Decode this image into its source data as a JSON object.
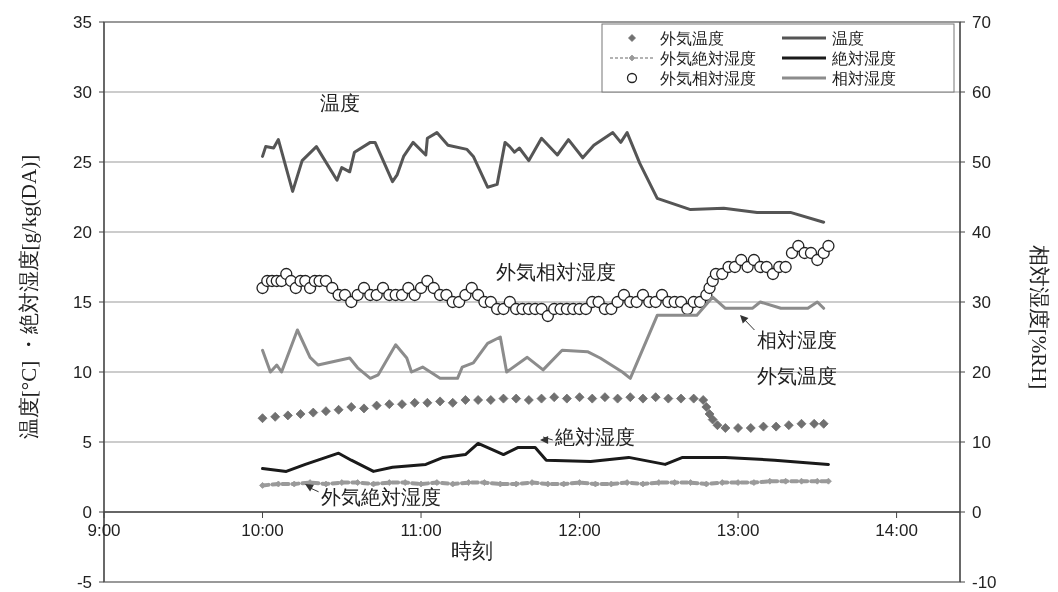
{
  "chart_data": {
    "type": "line",
    "xlabel": "時刻",
    "ylabel": "温度[°C] ・絶対湿度[g/kg(DA)]",
    "y2label": "相対湿度[%RH]",
    "xlim": [
      9,
      14.4
    ],
    "xticks": [
      {
        "value": 9,
        "label": "9:00"
      },
      {
        "value": 10,
        "label": "10:00"
      },
      {
        "value": 11,
        "label": "11:00"
      },
      {
        "value": 12,
        "label": "12:00"
      },
      {
        "value": 13,
        "label": "13:00"
      },
      {
        "value": 14,
        "label": "14:00"
      }
    ],
    "ylim": [
      -5,
      35
    ],
    "yticks": [
      -5,
      0,
      5,
      10,
      15,
      20,
      25,
      30,
      35
    ],
    "y2lim": [
      -10,
      70
    ],
    "y2ticks": [
      -10,
      0,
      10,
      20,
      30,
      40,
      50,
      60,
      70
    ],
    "grid": "y",
    "legend": "top right",
    "series": [
      {
        "name": "外気温度",
        "type": "scatter",
        "marker": "diamond",
        "color": "#707070",
        "x": [
          10.0,
          10.08,
          10.16,
          10.24,
          10.32,
          10.4,
          10.48,
          10.56,
          10.64,
          10.72,
          10.8,
          10.88,
          10.96,
          11.04,
          11.12,
          11.2,
          11.28,
          11.36,
          11.44,
          11.52,
          11.6,
          11.68,
          11.76,
          11.84,
          11.92,
          12.0,
          12.08,
          12.16,
          12.24,
          12.32,
          12.4,
          12.48,
          12.56,
          12.64,
          12.72,
          12.78,
          12.8,
          12.82,
          12.84,
          12.87,
          12.92,
          13.0,
          13.08,
          13.16,
          13.24,
          13.32,
          13.4,
          13.48,
          13.54
        ],
        "values": [
          6.7,
          6.8,
          6.9,
          7.0,
          7.1,
          7.2,
          7.3,
          7.5,
          7.4,
          7.6,
          7.7,
          7.7,
          7.8,
          7.8,
          7.9,
          7.8,
          8.0,
          8.0,
          8.0,
          8.1,
          8.1,
          8.0,
          8.1,
          8.2,
          8.1,
          8.2,
          8.1,
          8.2,
          8.1,
          8.2,
          8.1,
          8.2,
          8.1,
          8.1,
          8.1,
          8.0,
          7.5,
          7.0,
          6.6,
          6.2,
          6.0,
          6.0,
          6.0,
          6.1,
          6.1,
          6.2,
          6.3,
          6.3,
          6.3
        ]
      },
      {
        "name": "外気絶対湿度",
        "marker": "diamond",
        "line_style": "dashed",
        "color": "#9a9a9a",
        "x": [
          10.0,
          10.1,
          10.2,
          10.3,
          10.4,
          10.5,
          10.6,
          10.7,
          10.8,
          10.9,
          11.0,
          11.1,
          11.2,
          11.3,
          11.4,
          11.5,
          11.6,
          11.7,
          11.8,
          11.9,
          12.0,
          12.1,
          12.2,
          12.3,
          12.4,
          12.5,
          12.6,
          12.7,
          12.8,
          12.9,
          13.0,
          13.1,
          13.2,
          13.3,
          13.4,
          13.5,
          13.57
        ],
        "values": [
          1.9,
          2.0,
          2.0,
          2.1,
          2.0,
          2.1,
          2.1,
          2.0,
          2.1,
          2.1,
          2.0,
          2.1,
          2.0,
          2.1,
          2.1,
          2.0,
          2.0,
          2.1,
          2.0,
          2.0,
          2.1,
          2.0,
          2.0,
          2.1,
          2.0,
          2.1,
          2.1,
          2.1,
          2.0,
          2.1,
          2.1,
          2.1,
          2.2,
          2.2,
          2.2,
          2.2,
          2.2
        ]
      },
      {
        "name": "外気相対湿度",
        "type": "scatter",
        "marker": "circle",
        "axis": "y2",
        "color": "#222222",
        "x": [
          10.0,
          10.03,
          10.06,
          10.09,
          10.12,
          10.15,
          10.18,
          10.21,
          10.24,
          10.27,
          10.3,
          10.33,
          10.36,
          10.4,
          10.44,
          10.48,
          10.52,
          10.56,
          10.6,
          10.64,
          10.68,
          10.72,
          10.76,
          10.8,
          10.84,
          10.88,
          10.92,
          10.96,
          11.0,
          11.04,
          11.08,
          11.12,
          11.16,
          11.2,
          11.24,
          11.28,
          11.32,
          11.36,
          11.4,
          11.44,
          11.48,
          11.52,
          11.56,
          11.6,
          11.64,
          11.68,
          11.72,
          11.76,
          11.8,
          11.84,
          11.88,
          11.92,
          11.96,
          12.0,
          12.04,
          12.08,
          12.12,
          12.16,
          12.2,
          12.24,
          12.28,
          12.32,
          12.36,
          12.4,
          12.44,
          12.48,
          12.52,
          12.56,
          12.6,
          12.64,
          12.68,
          12.72,
          12.76,
          12.8,
          12.82,
          12.84,
          12.86,
          12.9,
          12.94,
          12.98,
          13.02,
          13.06,
          13.1,
          13.14,
          13.18,
          13.22,
          13.26,
          13.3,
          13.34,
          13.38,
          13.42,
          13.46,
          13.5,
          13.54,
          13.57
        ],
        "values": [
          32,
          33,
          33,
          33,
          33,
          34,
          33,
          32,
          33,
          33,
          32,
          33,
          33,
          33,
          32,
          31,
          31,
          30,
          31,
          32,
          31,
          31,
          32,
          31,
          31,
          31,
          32,
          31,
          32,
          33,
          32,
          31,
          31,
          30,
          30,
          31,
          32,
          31,
          30,
          30,
          29,
          29,
          30,
          29,
          29,
          29,
          29,
          29,
          28,
          29,
          29,
          29,
          29,
          29,
          29,
          30,
          30,
          29,
          29,
          30,
          31,
          30,
          30,
          31,
          30,
          30,
          31,
          30,
          30,
          30,
          29,
          30,
          30,
          31,
          32,
          33,
          34,
          34,
          35,
          35,
          36,
          35,
          36,
          35,
          35,
          34,
          35,
          35,
          37,
          38,
          37,
          37,
          36,
          37,
          38
        ]
      },
      {
        "name": "温度",
        "marker": "none",
        "color": "#555555",
        "x": [
          10.0,
          10.02,
          10.07,
          10.1,
          10.19,
          10.25,
          10.34,
          10.47,
          10.5,
          10.55,
          10.58,
          10.68,
          10.71,
          10.82,
          10.85,
          10.89,
          10.95,
          11.03,
          11.04,
          11.1,
          11.17,
          11.29,
          11.33,
          11.42,
          11.48,
          11.53,
          11.56,
          11.59,
          11.62,
          11.68,
          11.76,
          11.86,
          11.93,
          12.02,
          12.09,
          12.21,
          12.26,
          12.3,
          12.38,
          12.49,
          12.7,
          12.91,
          13.12,
          13.33,
          13.54
        ],
        "values": [
          25.4,
          26.1,
          26.0,
          26.6,
          22.9,
          25.1,
          26.1,
          23.7,
          24.6,
          24.3,
          25.7,
          26.4,
          26.4,
          23.6,
          24.1,
          25.4,
          26.4,
          25.5,
          26.7,
          27.1,
          26.2,
          25.9,
          25.4,
          23.2,
          23.4,
          26.4,
          26.1,
          25.7,
          26.0,
          25.1,
          26.7,
          25.5,
          26.6,
          25.3,
          26.2,
          27.1,
          26.4,
          27.1,
          24.9,
          22.4,
          21.6,
          21.7,
          21.4,
          21.4,
          20.7
        ]
      },
      {
        "name": "絶対湿度",
        "marker": "none",
        "color": "#1a1a1a",
        "x": [
          10.0,
          10.15,
          10.27,
          10.48,
          10.56,
          10.7,
          10.82,
          11.03,
          11.14,
          11.28,
          11.36,
          11.46,
          11.52,
          11.61,
          11.72,
          11.79,
          12.07,
          12.31,
          12.54,
          12.65,
          12.92,
          13.23,
          13.57
        ],
        "values": [
          3.1,
          2.9,
          3.4,
          4.2,
          3.7,
          2.9,
          3.2,
          3.4,
          3.9,
          4.1,
          4.9,
          4.4,
          4.1,
          4.6,
          4.6,
          3.7,
          3.6,
          3.9,
          3.4,
          3.9,
          3.9,
          3.7,
          3.4
        ]
      },
      {
        "name": "相対湿度",
        "marker": "none",
        "axis": "y2",
        "color": "#8c8c8c",
        "x": [
          10.0,
          10.05,
          10.09,
          10.12,
          10.22,
          10.3,
          10.35,
          10.55,
          10.6,
          10.68,
          10.73,
          10.84,
          10.91,
          10.94,
          11.01,
          11.12,
          11.23,
          11.26,
          11.33,
          11.42,
          11.5,
          11.54,
          11.67,
          11.77,
          11.89,
          12.05,
          12.13,
          12.27,
          12.32,
          12.49,
          12.74,
          12.84,
          12.92,
          13.09,
          13.14,
          13.27,
          13.44,
          13.5,
          13.54
        ],
        "values": [
          23.1,
          20,
          21,
          20,
          26,
          22.1,
          21,
          22,
          20.6,
          19.1,
          19.6,
          23.9,
          22,
          20,
          20.7,
          19.1,
          19.1,
          20.7,
          21.3,
          24.1,
          25,
          20,
          22.1,
          20.3,
          23.1,
          22.9,
          22,
          20,
          19.1,
          28.1,
          28.1,
          30.7,
          29.1,
          29.1,
          30,
          29.1,
          29.1,
          30,
          29.1
        ]
      }
    ],
    "annotations": [
      "温度",
      "外気相対湿度",
      "外気温度",
      "相対湿度",
      "絶対湿度",
      "外気絶対湿度"
    ]
  }
}
